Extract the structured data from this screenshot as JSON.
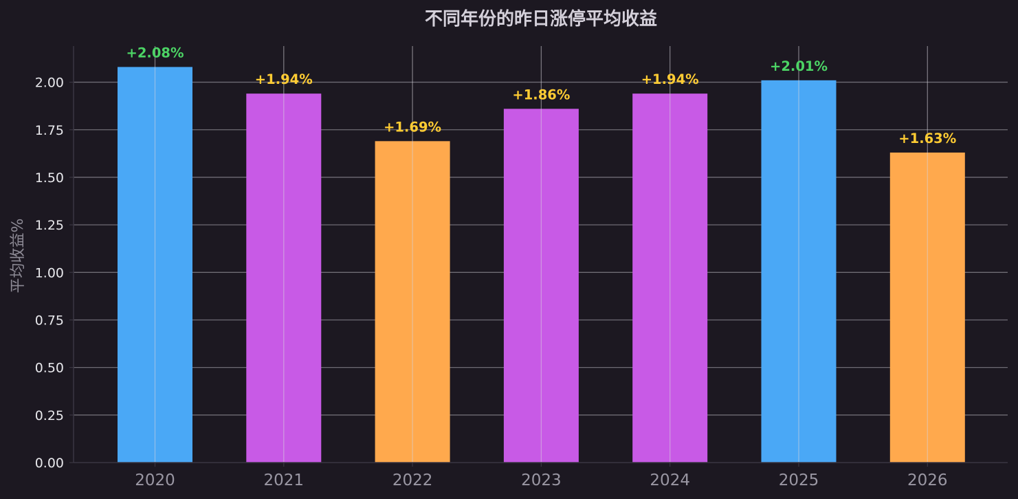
{
  "chart_data": {
    "type": "bar",
    "title": "不同年份的昨日涨停平均收益",
    "xlabel": "",
    "ylabel": "平均收益%",
    "categories": [
      "2020",
      "2021",
      "2022",
      "2023",
      "2024",
      "2025",
      "2026"
    ],
    "values": [
      2.08,
      1.94,
      1.69,
      1.86,
      1.94,
      2.01,
      1.63
    ],
    "data_labels": [
      "+2.08%",
      "+1.94%",
      "+1.69%",
      "+1.86%",
      "+1.94%",
      "+2.01%",
      "+1.63%"
    ],
    "bar_colors": [
      "#4aa8f6",
      "#c85ae6",
      "#ffa94d",
      "#c85ae6",
      "#c85ae6",
      "#4aa8f6",
      "#ffa94d"
    ],
    "label_colors": [
      "#4cd465",
      "#ffcc33",
      "#ffcc33",
      "#ffcc33",
      "#ffcc33",
      "#4cd465",
      "#ffcc33"
    ],
    "ylim": [
      0,
      2.19
    ],
    "yticks": [
      0.0,
      0.25,
      0.5,
      0.75,
      1.0,
      1.25,
      1.5,
      1.75,
      2.0
    ],
    "ytick_labels": [
      "0.00",
      "0.25",
      "0.50",
      "0.75",
      "1.00",
      "1.25",
      "1.50",
      "1.75",
      "2.00"
    ],
    "grid": true,
    "legend": "none"
  }
}
